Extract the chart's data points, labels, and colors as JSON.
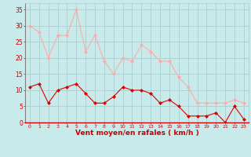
{
  "x": [
    0,
    1,
    2,
    3,
    4,
    5,
    6,
    7,
    8,
    9,
    10,
    11,
    12,
    13,
    14,
    15,
    16,
    17,
    18,
    19,
    20,
    21,
    22,
    23
  ],
  "wind_avg": [
    11,
    12,
    6,
    10,
    11,
    12,
    9,
    6,
    6,
    8,
    11,
    10,
    10,
    9,
    6,
    7,
    5,
    2,
    2,
    2,
    3,
    0,
    5,
    1
  ],
  "wind_gust": [
    30,
    28,
    20,
    27,
    27,
    35,
    22,
    27,
    19,
    15,
    20,
    19,
    24,
    22,
    19,
    19,
    14,
    11,
    6,
    6,
    6,
    6,
    7,
    6
  ],
  "bg_color": "#c8eaea",
  "grid_color": "#aacece",
  "avg_color": "#dd0000",
  "gust_color": "#ffaaaa",
  "xlabel": "Vent moyen/en rafales ( km/h )",
  "xlabel_color": "#cc0000",
  "tick_color": "#cc0000",
  "ylim": [
    0,
    37
  ],
  "yticks": [
    0,
    5,
    10,
    15,
    20,
    25,
    30,
    35
  ],
  "marker": "D",
  "marker_size": 2.0,
  "line_width": 0.8
}
